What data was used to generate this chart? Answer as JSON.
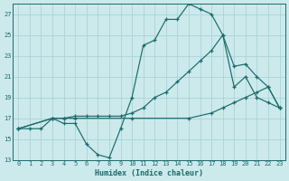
{
  "xlabel": "Humidex (Indice chaleur)",
  "bg_color": "#cce9ec",
  "grid_color": "#aad4d8",
  "line_color": "#1a6b6b",
  "xlim": [
    -0.5,
    23.5
  ],
  "ylim": [
    13,
    28
  ],
  "xticks": [
    0,
    1,
    2,
    3,
    4,
    5,
    6,
    7,
    8,
    9,
    10,
    11,
    12,
    13,
    14,
    15,
    16,
    17,
    18,
    19,
    20,
    21,
    22,
    23
  ],
  "yticks": [
    13,
    15,
    17,
    19,
    21,
    23,
    25,
    27
  ],
  "line1_x": [
    0,
    1,
    2,
    3,
    4,
    5,
    6,
    7,
    8,
    9,
    10,
    11,
    12,
    13,
    14,
    15,
    16,
    17,
    18,
    19,
    20,
    21,
    22,
    23
  ],
  "line1_y": [
    16.0,
    16.0,
    16.0,
    17.0,
    16.5,
    16.5,
    14.5,
    13.5,
    13.2,
    16.0,
    19.0,
    24.0,
    24.5,
    26.5,
    26.5,
    28.0,
    27.5,
    27.0,
    25.0,
    20.0,
    21.0,
    19.0,
    18.5,
    18.0
  ],
  "line2_x": [
    0,
    3,
    4,
    5,
    6,
    7,
    8,
    9,
    10,
    11,
    12,
    13,
    14,
    15,
    16,
    17,
    18,
    19,
    20,
    21,
    22,
    23
  ],
  "line2_y": [
    16.0,
    17.0,
    17.0,
    17.2,
    17.2,
    17.2,
    17.2,
    17.2,
    17.5,
    18.0,
    19.0,
    19.5,
    20.5,
    21.5,
    22.5,
    23.5,
    25.0,
    22.0,
    22.2,
    21.0,
    20.0,
    18.0
  ],
  "line3_x": [
    0,
    3,
    4,
    5,
    10,
    15,
    17,
    18,
    19,
    20,
    21,
    22,
    23
  ],
  "line3_y": [
    16.0,
    17.0,
    17.0,
    17.0,
    17.0,
    17.0,
    17.5,
    18.0,
    18.5,
    19.0,
    19.5,
    20.0,
    18.0
  ]
}
